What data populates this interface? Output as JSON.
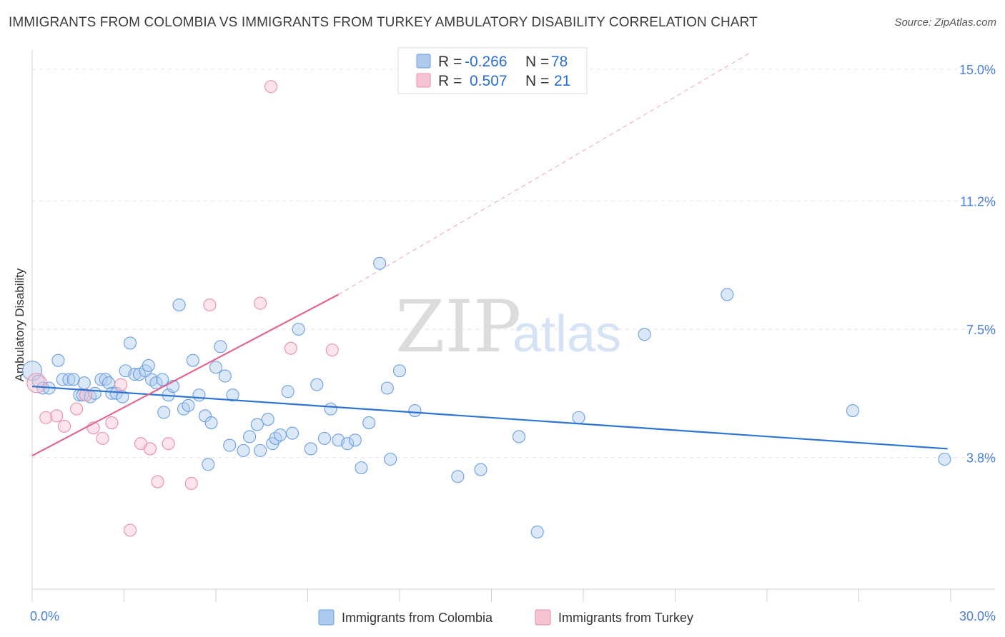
{
  "title": "IMMIGRANTS FROM COLOMBIA VS IMMIGRANTS FROM TURKEY AMBULATORY DISABILITY CORRELATION CHART",
  "source": "Source: ZipAtlas.com",
  "watermark": {
    "zip": "ZIP",
    "atlas": "atlas"
  },
  "colors": {
    "colombia_fill": "#aecbef",
    "colombia_stroke": "#6c9ee0",
    "colombia_line": "#2f74d0",
    "turkey_fill": "#f6c3d3",
    "turkey_stroke": "#e88fab",
    "turkey_line": "#e2678f",
    "tick_text": "#4a7fd4",
    "grid": "#e2e2e2"
  },
  "stats": {
    "colombia": {
      "r_label": "R =",
      "r_value": "-0.266",
      "n_label": "N =",
      "n_value": "78"
    },
    "turkey": {
      "r_label": "R =",
      "r_value": "0.507",
      "n_label": "N =",
      "n_value": "21"
    }
  },
  "chart_data": {
    "type": "scatter",
    "title": "IMMIGRANTS FROM COLOMBIA VS IMMIGRANTS FROM TURKEY AMBULATORY DISABILITY CORRELATION CHART",
    "xlabel": "",
    "ylabel": "Ambulatory Disability",
    "xlim": [
      0,
      30
    ],
    "ylim": [
      0,
      15.5
    ],
    "x_tick_labels": [
      "0.0%",
      "30.0%"
    ],
    "y_ticks": [
      3.8,
      7.5,
      11.2,
      15.0
    ],
    "y_tick_labels": [
      "3.8%",
      "7.5%",
      "11.2%",
      "15.0%"
    ],
    "grid": true,
    "legend_position": "bottom",
    "series": [
      {
        "name": "Immigrants from Colombia",
        "trend": {
          "x": [
            0,
            29.9
          ],
          "y": [
            5.85,
            4.05
          ]
        },
        "points": [
          [
            0.0,
            6.3,
            1.6
          ],
          [
            0.2,
            6.0,
            1.0
          ],
          [
            0.35,
            5.8,
            1.0
          ],
          [
            0.55,
            5.8,
            1.0
          ],
          [
            0.85,
            6.6,
            1.0
          ],
          [
            1.0,
            6.05,
            1.0
          ],
          [
            1.2,
            6.05,
            1.0
          ],
          [
            1.35,
            6.05,
            1.0
          ],
          [
            1.55,
            5.6,
            1.0
          ],
          [
            1.65,
            5.6,
            1.0
          ],
          [
            1.7,
            5.95,
            1.0
          ],
          [
            1.9,
            5.55,
            1.0
          ],
          [
            2.05,
            5.65,
            1.0
          ],
          [
            2.25,
            6.05,
            1.0
          ],
          [
            2.4,
            6.05,
            1.0
          ],
          [
            2.5,
            5.95,
            1.0
          ],
          [
            2.6,
            5.65,
            1.0
          ],
          [
            2.75,
            5.65,
            1.0
          ],
          [
            2.95,
            5.55,
            1.0
          ],
          [
            3.05,
            6.3,
            1.0
          ],
          [
            3.2,
            7.1,
            1.0
          ],
          [
            3.35,
            6.2,
            1.0
          ],
          [
            3.5,
            6.2,
            1.0
          ],
          [
            3.7,
            6.3,
            1.0
          ],
          [
            3.8,
            6.45,
            1.0
          ],
          [
            3.9,
            6.05,
            1.0
          ],
          [
            4.05,
            5.95,
            1.0
          ],
          [
            4.25,
            6.05,
            1.0
          ],
          [
            4.3,
            5.1,
            1.0
          ],
          [
            4.45,
            5.6,
            1.0
          ],
          [
            4.6,
            5.85,
            1.0
          ],
          [
            4.8,
            8.2,
            1.0
          ],
          [
            4.95,
            5.2,
            1.0
          ],
          [
            5.1,
            5.3,
            1.0
          ],
          [
            5.25,
            6.6,
            1.0
          ],
          [
            5.45,
            5.6,
            1.0
          ],
          [
            5.65,
            5.0,
            1.0
          ],
          [
            5.75,
            3.6,
            1.0
          ],
          [
            5.85,
            4.8,
            1.0
          ],
          [
            6.0,
            6.4,
            1.0
          ],
          [
            6.15,
            7.0,
            1.0
          ],
          [
            6.3,
            6.15,
            1.0
          ],
          [
            6.45,
            4.15,
            1.0
          ],
          [
            6.55,
            5.6,
            1.0
          ],
          [
            6.9,
            4.0,
            1.0
          ],
          [
            7.1,
            4.4,
            1.0
          ],
          [
            7.35,
            4.75,
            1.0
          ],
          [
            7.45,
            4.0,
            1.0
          ],
          [
            7.7,
            4.9,
            1.0
          ],
          [
            7.85,
            4.2,
            1.0
          ],
          [
            7.95,
            4.35,
            1.0
          ],
          [
            8.1,
            4.45,
            1.0
          ],
          [
            8.35,
            5.7,
            1.0
          ],
          [
            8.5,
            4.5,
            1.0
          ],
          [
            8.7,
            7.5,
            1.0
          ],
          [
            9.1,
            4.05,
            1.0
          ],
          [
            9.3,
            5.9,
            1.0
          ],
          [
            9.55,
            4.35,
            1.0
          ],
          [
            9.75,
            5.2,
            1.0
          ],
          [
            10.0,
            4.3,
            1.0
          ],
          [
            10.3,
            4.2,
            1.0
          ],
          [
            10.55,
            4.3,
            1.0
          ],
          [
            10.75,
            3.5,
            1.0
          ],
          [
            11.0,
            4.8,
            1.0
          ],
          [
            11.35,
            9.4,
            1.0
          ],
          [
            11.6,
            5.8,
            1.0
          ],
          [
            11.7,
            3.75,
            1.0
          ],
          [
            12.0,
            6.3,
            1.0
          ],
          [
            12.5,
            5.15,
            1.0
          ],
          [
            13.9,
            3.25,
            1.0
          ],
          [
            14.65,
            3.45,
            1.0
          ],
          [
            15.9,
            4.4,
            1.0
          ],
          [
            16.5,
            1.65,
            1.0
          ],
          [
            17.85,
            4.95,
            1.0
          ],
          [
            20.0,
            7.35,
            1.0
          ],
          [
            22.7,
            8.5,
            1.0
          ],
          [
            26.8,
            5.15,
            1.0
          ],
          [
            29.8,
            3.75,
            1.0
          ]
        ]
      },
      {
        "name": "Immigrants from Turkey",
        "trend": {
          "x": [
            0,
            10.0
          ],
          "y": [
            3.85,
            8.5
          ]
        },
        "trend_extension": {
          "x": [
            10.0,
            23.5
          ],
          "y": [
            8.5,
            15.5
          ]
        },
        "points": [
          [
            0.15,
            5.95,
            1.6
          ],
          [
            0.45,
            4.95,
            1.0
          ],
          [
            0.8,
            5.0,
            1.0
          ],
          [
            1.05,
            4.7,
            1.0
          ],
          [
            1.45,
            5.2,
            1.0
          ],
          [
            1.75,
            5.6,
            1.0
          ],
          [
            2.0,
            4.65,
            1.0
          ],
          [
            2.3,
            4.35,
            1.0
          ],
          [
            2.6,
            4.8,
            1.0
          ],
          [
            2.9,
            5.9,
            1.0
          ],
          [
            3.2,
            1.7,
            1.0
          ],
          [
            3.55,
            4.2,
            1.0
          ],
          [
            3.85,
            4.05,
            1.0
          ],
          [
            4.1,
            3.1,
            1.0
          ],
          [
            4.45,
            4.2,
            1.0
          ],
          [
            5.2,
            3.05,
            1.0
          ],
          [
            5.8,
            8.2,
            1.0
          ],
          [
            7.45,
            8.25,
            1.0
          ],
          [
            7.8,
            14.5,
            1.0
          ],
          [
            8.45,
            6.95,
            1.0
          ],
          [
            9.8,
            6.9,
            1.0
          ]
        ]
      }
    ]
  }
}
